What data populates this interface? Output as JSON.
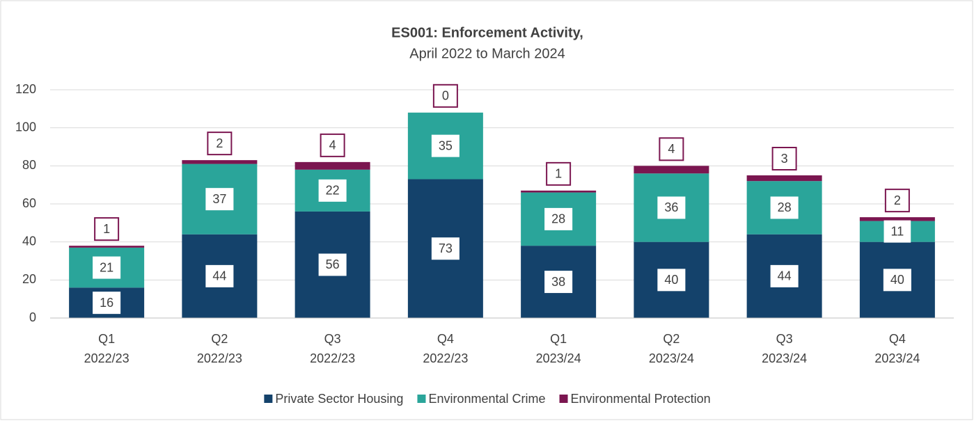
{
  "chart_data": {
    "type": "stacked_bar",
    "title": "ES001: Enforcement Activity,",
    "subtitle": "April 2022 to March 2024",
    "categories": [
      [
        "Q1",
        "2022/23"
      ],
      [
        "Q2",
        "2022/23"
      ],
      [
        "Q3",
        "2022/23"
      ],
      [
        "Q4",
        "2022/23"
      ],
      [
        "Q1",
        "2023/24"
      ],
      [
        "Q2",
        "2023/24"
      ],
      [
        "Q3",
        "2023/24"
      ],
      [
        "Q4",
        "2023/24"
      ]
    ],
    "series": [
      {
        "name": "Private Sector Housing",
        "color": "#14426b",
        "values": [
          16,
          44,
          56,
          73,
          38,
          40,
          44,
          40
        ]
      },
      {
        "name": "Environmental Crime",
        "color": "#2aa59a",
        "values": [
          21,
          37,
          22,
          35,
          28,
          36,
          28,
          11
        ]
      },
      {
        "name": "Environmental Protection",
        "color": "#7b1650",
        "values": [
          1,
          2,
          4,
          0,
          1,
          4,
          3,
          2
        ]
      }
    ],
    "ylim": [
      0,
      120
    ],
    "yticks": [
      0,
      20,
      40,
      60,
      80,
      100,
      120
    ],
    "grid": true,
    "legend": "bottom"
  }
}
